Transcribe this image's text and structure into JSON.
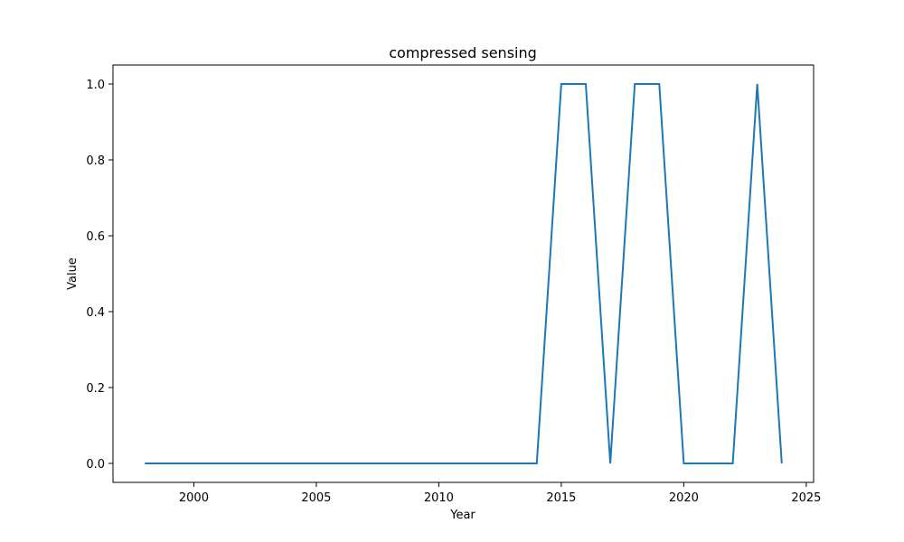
{
  "chart_data": {
    "type": "line",
    "title": "compressed sensing",
    "xlabel": "Year",
    "ylabel": "Value",
    "xlim": [
      1996.7,
      2025.3
    ],
    "ylim": [
      -0.05,
      1.05
    ],
    "xticks": [
      2000,
      2005,
      2010,
      2015,
      2020,
      2025
    ],
    "yticks": [
      0.0,
      0.2,
      0.4,
      0.6,
      0.8,
      1.0
    ],
    "ytick_labels": [
      "0.0",
      "0.2",
      "0.4",
      "0.6",
      "0.8",
      "1.0"
    ],
    "grid": false,
    "color": "#1f77b4",
    "series": [
      {
        "x": [
          1998,
          1999,
          2000,
          2001,
          2002,
          2003,
          2004,
          2005,
          2006,
          2007,
          2008,
          2009,
          2010,
          2011,
          2012,
          2013,
          2014,
          2015,
          2016,
          2017,
          2018,
          2019,
          2020,
          2021,
          2022,
          2023,
          2024
        ],
        "values": [
          0,
          0,
          0,
          0,
          0,
          0,
          0,
          0,
          0,
          0,
          0,
          0,
          0,
          0,
          0,
          0,
          0,
          1,
          1,
          0,
          1,
          1,
          0,
          0,
          0,
          1,
          0
        ]
      }
    ]
  }
}
